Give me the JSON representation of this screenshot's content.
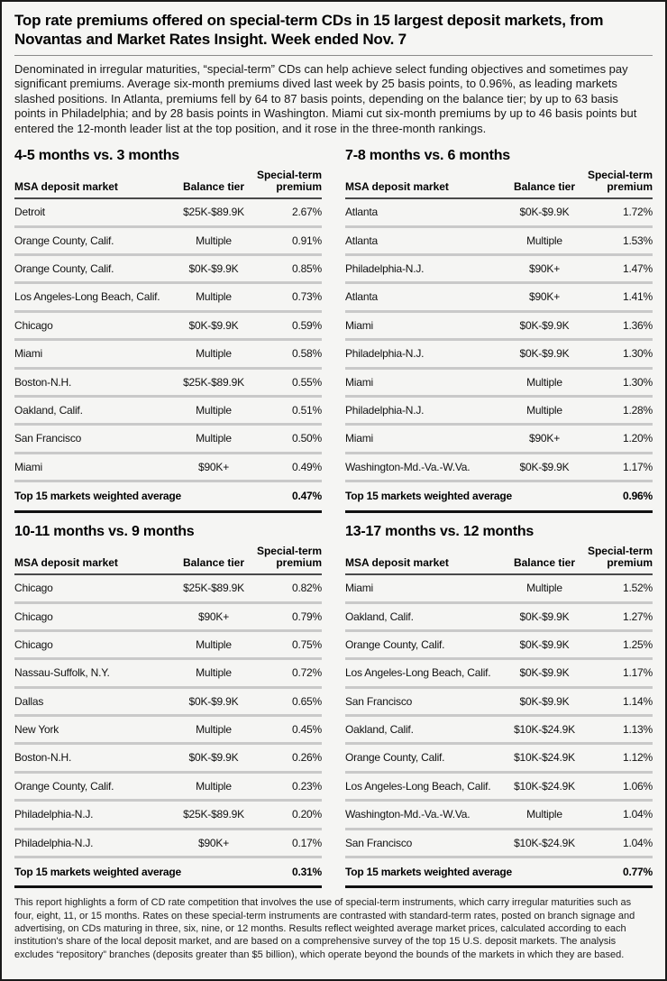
{
  "page": {
    "title": "Top rate premiums offered on special-term CDs in 15 largest deposit markets, from Novantas and Market Rates Insight. Week ended Nov. 7",
    "intro": "Denominated in irregular maturities, “special-term” CDs can help achieve select funding objectives and sometimes pay significant premiums. Average six-month premiums dived last week by 25 basis points, to 0.96%, as leading markets slashed positions. In Atlanta, premiums fell by 64 to 87 basis points, depending on the balance tier; by up to 63 basis points in Philadelphia; and by 28 basis points in Washington. Miami cut six-month premiums by up to 46 basis points but entered the 12-month leader list at the top position, and it rose in the three-month rankings.",
    "footnote": "This report highlights a form of CD rate competition that involves the use of special-term instruments, which carry irregular maturities such as four, eight, 11, or 15 months.  Rates on these special-term instruments are contrasted with standard-term rates, posted on branch signage and advertising, on CDs maturing in three, six, nine, or 12 months.  Results reflect weighted average market prices, calculated according to each institution's share of the local deposit market, and are based on a comprehensive survey of the top 15 U.S. deposit markets.  The analysis excludes “repository” branches (deposits greater than $5 billion), which operate beyond the bounds of the markets in which they are based."
  },
  "columns": {
    "market": "MSA deposit market",
    "tier": "Balance tier",
    "premium": "Special-term premium"
  },
  "footer_label": "Top 15 markets weighted average",
  "tables": [
    {
      "title": "4-5 months vs. 3 months",
      "rows": [
        [
          "Detroit",
          "$25K-$89.9K",
          "2.67%"
        ],
        [
          "Orange County, Calif.",
          "Multiple",
          "0.91%"
        ],
        [
          "Orange County, Calif.",
          "$0K-$9.9K",
          "0.85%"
        ],
        [
          "Los Angeles-Long Beach, Calif.",
          "Multiple",
          "0.73%"
        ],
        [
          "Chicago",
          "$0K-$9.9K",
          "0.59%"
        ],
        [
          "Miami",
          "Multiple",
          "0.58%"
        ],
        [
          "Boston-N.H.",
          "$25K-$89.9K",
          "0.55%"
        ],
        [
          "Oakland, Calif.",
          "Multiple",
          "0.51%"
        ],
        [
          "San Francisco",
          "Multiple",
          "0.50%"
        ],
        [
          "Miami",
          "$90K+",
          "0.49%"
        ]
      ],
      "footer_value": "0.47%"
    },
    {
      "title": "7-8 months vs. 6 months",
      "rows": [
        [
          "Atlanta",
          "$0K-$9.9K",
          "1.72%"
        ],
        [
          "Atlanta",
          "Multiple",
          "1.53%"
        ],
        [
          "Philadelphia-N.J.",
          "$90K+",
          "1.47%"
        ],
        [
          "Atlanta",
          "$90K+",
          "1.41%"
        ],
        [
          "Miami",
          "$0K-$9.9K",
          "1.36%"
        ],
        [
          "Philadelphia-N.J.",
          "$0K-$9.9K",
          "1.30%"
        ],
        [
          "Miami",
          "Multiple",
          "1.30%"
        ],
        [
          "Philadelphia-N.J.",
          "Multiple",
          "1.28%"
        ],
        [
          "Miami",
          "$90K+",
          "1.20%"
        ],
        [
          "Washington-Md.-Va.-W.Va.",
          "$0K-$9.9K",
          "1.17%"
        ]
      ],
      "footer_value": "0.96%"
    },
    {
      "title": "10-11 months vs. 9 months",
      "rows": [
        [
          "Chicago",
          "$25K-$89.9K",
          "0.82%"
        ],
        [
          "Chicago",
          "$90K+",
          "0.79%"
        ],
        [
          "Chicago",
          "Multiple",
          "0.75%"
        ],
        [
          "Nassau-Suffolk, N.Y.",
          "Multiple",
          "0.72%"
        ],
        [
          "Dallas",
          "$0K-$9.9K",
          "0.65%"
        ],
        [
          "New York",
          "Multiple",
          "0.45%"
        ],
        [
          "Boston-N.H.",
          "$0K-$9.9K",
          "0.26%"
        ],
        [
          "Orange County, Calif.",
          "Multiple",
          "0.23%"
        ],
        [
          "Philadelphia-N.J.",
          "$25K-$89.9K",
          "0.20%"
        ],
        [
          "Philadelphia-N.J.",
          "$90K+",
          "0.17%"
        ]
      ],
      "footer_value": "0.31%"
    },
    {
      "title": "13-17 months vs. 12 months",
      "rows": [
        [
          "Miami",
          "Multiple",
          "1.52%"
        ],
        [
          "Oakland, Calif.",
          "$0K-$9.9K",
          "1.27%"
        ],
        [
          "Orange County, Calif.",
          "$0K-$9.9K",
          "1.25%"
        ],
        [
          "Los Angeles-Long Beach, Calif.",
          "$0K-$9.9K",
          "1.17%"
        ],
        [
          "San Francisco",
          "$0K-$9.9K",
          "1.14%"
        ],
        [
          "Oakland, Calif.",
          "$10K-$24.9K",
          "1.13%"
        ],
        [
          "Orange County, Calif.",
          "$10K-$24.9K",
          "1.12%"
        ],
        [
          "Los Angeles-Long Beach, Calif.",
          "$10K-$24.9K",
          "1.06%"
        ],
        [
          "Washington-Md.-Va.-W.Va.",
          "Multiple",
          "1.04%"
        ],
        [
          "San Francisco",
          "$10K-$24.9K",
          "1.04%"
        ]
      ],
      "footer_value": "0.77%"
    }
  ]
}
